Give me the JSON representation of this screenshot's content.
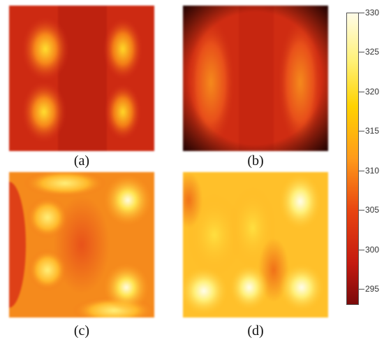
{
  "panels": [
    {
      "label": "(a)"
    },
    {
      "label": "(b)"
    },
    {
      "label": "(c)"
    },
    {
      "label": "(d)"
    }
  ],
  "colorbar": {
    "max": 330,
    "min": 293,
    "ticks": [
      {
        "value": 330,
        "text": "330"
      },
      {
        "value": 325,
        "text": "325"
      },
      {
        "value": 320,
        "text": "320"
      },
      {
        "value": 315,
        "text": "315"
      },
      {
        "value": 310,
        "text": "310"
      },
      {
        "value": 305,
        "text": "305"
      },
      {
        "value": 300,
        "text": "300"
      },
      {
        "value": 295,
        "text": "295"
      }
    ],
    "colors": {
      "low": "#7a0a0a",
      "mid_low": "#c41a10",
      "mid": "#e84410",
      "mid_high": "#ffd200",
      "high": "#fffce8"
    }
  }
}
